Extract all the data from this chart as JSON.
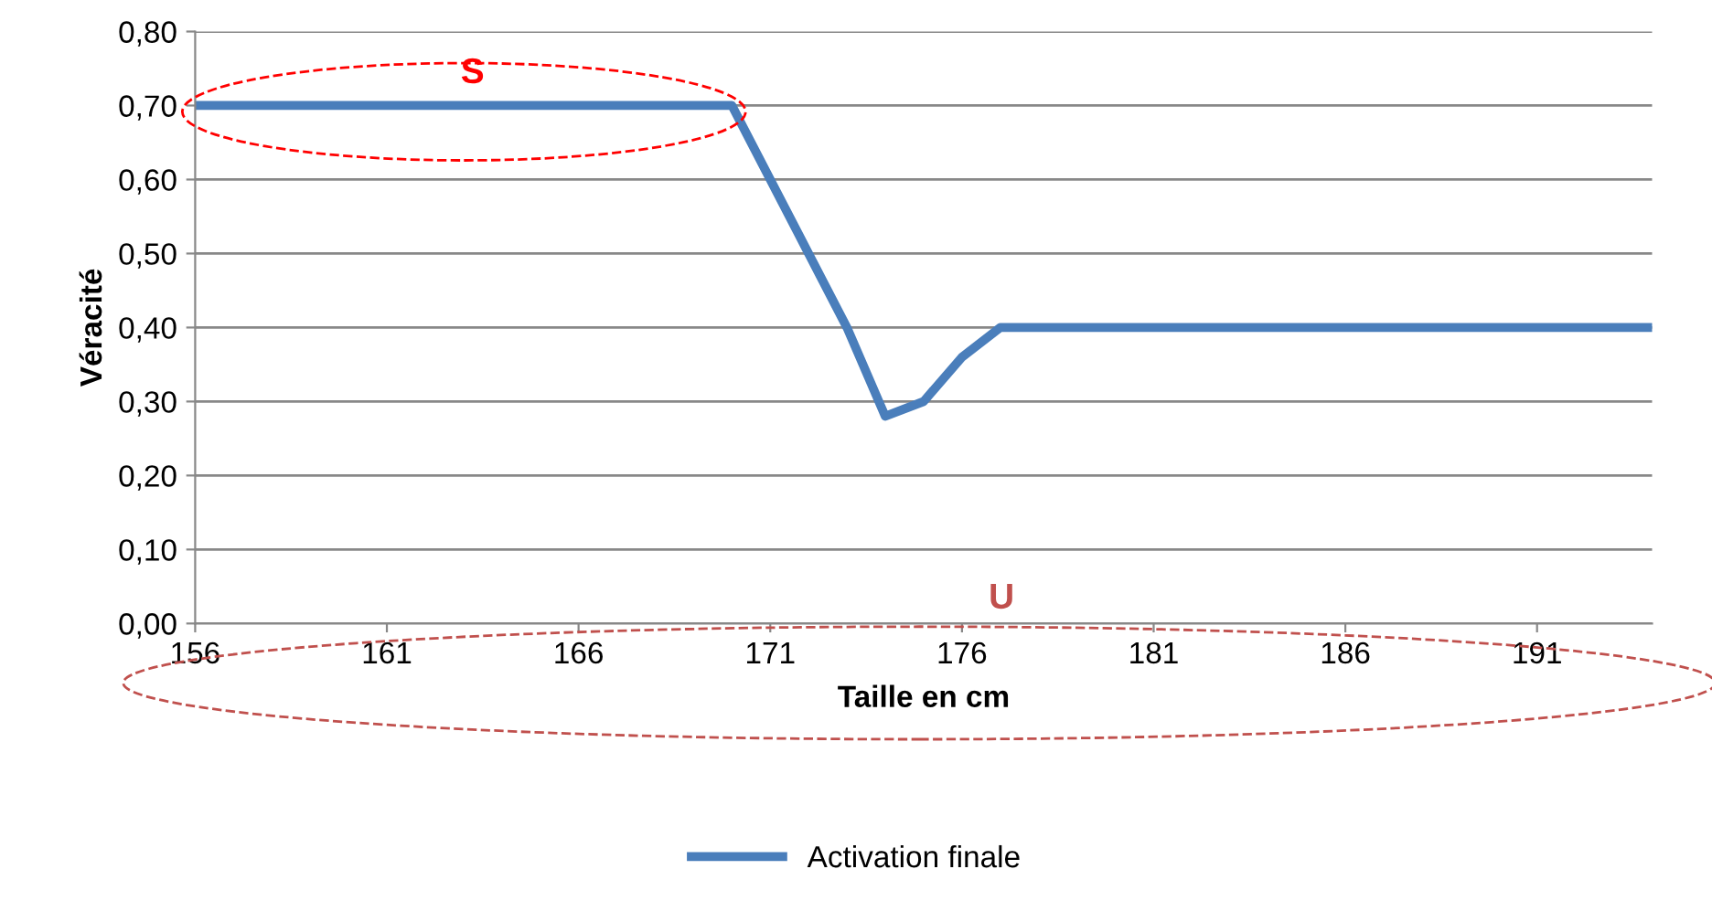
{
  "chart_data": {
    "type": "line",
    "xlabel": "Taille en cm",
    "ylabel": "Véracité",
    "x": [
      156,
      157,
      158,
      159,
      160,
      161,
      162,
      163,
      164,
      165,
      166,
      167,
      168,
      169,
      170,
      171,
      172,
      173,
      174,
      175,
      176,
      177,
      178,
      179,
      180,
      181,
      182,
      183,
      184,
      185,
      186,
      187,
      188,
      189,
      190,
      191,
      192,
      193,
      194
    ],
    "series": [
      {
        "name": "Activation finale",
        "color": "#4a7ebb",
        "values": [
          0.7,
          0.7,
          0.7,
          0.7,
          0.7,
          0.7,
          0.7,
          0.7,
          0.7,
          0.7,
          0.7,
          0.7,
          0.7,
          0.7,
          0.7,
          0.6,
          0.5,
          0.4,
          0.28,
          0.3,
          0.36,
          0.4,
          0.4,
          0.4,
          0.4,
          0.4,
          0.4,
          0.4,
          0.4,
          0.4,
          0.4,
          0.4,
          0.4,
          0.4,
          0.4,
          0.4,
          0.4,
          0.4,
          0.4
        ]
      }
    ],
    "xlim": [
      156,
      194
    ],
    "xticks": [
      156,
      161,
      166,
      171,
      176,
      181,
      186,
      191
    ],
    "ylim": [
      0,
      0.8
    ],
    "yticks": [
      {
        "value": 0,
        "label": "0,00"
      },
      {
        "value": 0.1,
        "label": "0,10"
      },
      {
        "value": 0.2,
        "label": "0,20"
      },
      {
        "value": 0.3,
        "label": "0,30"
      },
      {
        "value": 0.4,
        "label": "0,40"
      },
      {
        "value": 0.5,
        "label": "0,50"
      },
      {
        "value": 0.6,
        "label": "0,60"
      },
      {
        "value": 0.7,
        "label": "0,70"
      },
      {
        "value": 0.8,
        "label": "0,80"
      }
    ],
    "annotations": [
      "S",
      "U"
    ],
    "grid": "y",
    "legend": "bottom",
    "marker": "none",
    "line_style": "solid"
  }
}
